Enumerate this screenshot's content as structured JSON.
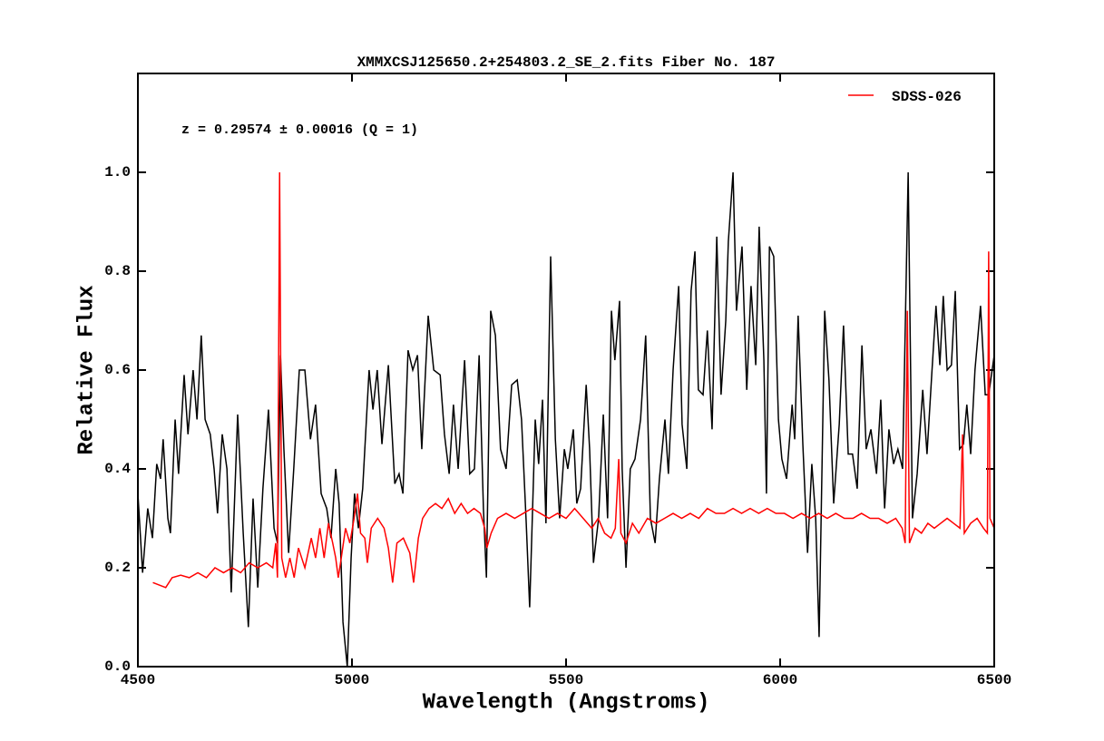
{
  "chart_data": {
    "type": "line",
    "title": "XMMXCSJ125650.2+254803.2_SE_2.fits Fiber No. 187",
    "xlabel": "Wavelength (Angstroms)",
    "ylabel": "Relative Flux",
    "annotation": "z = 0.29574 ± 0.00016 (Q = 1)",
    "annotation_color": "#ff0000",
    "legend": "upper right",
    "xlim": [
      4500,
      6500
    ],
    "ylim": [
      0,
      1.2
    ],
    "xticks": [
      4500,
      5000,
      5500,
      6000,
      6500
    ],
    "yticks": [
      {
        "value": 0,
        "label": "0.0"
      },
      0.2,
      0.4,
      0.6,
      0.8,
      {
        "value": 1,
        "label": "1.0"
      }
    ],
    "series": [
      {
        "color": "#000000",
        "x": [
          4500,
          4511,
          4523,
          4534,
          4544,
          4553,
          4559,
          4570,
          4576,
          4587,
          4595,
          4608,
          4617,
          4629,
          4638,
          4648,
          4657,
          4669,
          4678,
          4686,
          4697,
          4708,
          4718,
          4733,
          4746,
          4758,
          4769,
          4780,
          4792,
          4805,
          4818,
          4826,
          4833,
          4841,
          4852,
          4864,
          4877,
          4890,
          4903,
          4915,
          4928,
          4941,
          4951,
          4962,
          4970,
          4979,
          4989,
          4998,
          5006,
          5015,
          5025,
          5040,
          5049,
          5059,
          5070,
          5085,
          5100,
          5110,
          5119,
          5131,
          5142,
          5153,
          5163,
          5178,
          5191,
          5206,
          5216,
          5227,
          5237,
          5248,
          5263,
          5275,
          5286,
          5297,
          5307,
          5314,
          5324,
          5335,
          5347,
          5360,
          5373,
          5386,
          5396,
          5407,
          5415,
          5428,
          5436,
          5445,
          5453,
          5464,
          5475,
          5485,
          5496,
          5504,
          5517,
          5525,
          5534,
          5547,
          5555,
          5564,
          5576,
          5587,
          5597,
          5606,
          5614,
          5625,
          5631,
          5640,
          5650,
          5661,
          5674,
          5686,
          5697,
          5708,
          5718,
          5731,
          5739,
          5750,
          5763,
          5771,
          5782,
          5792,
          5801,
          5809,
          5820,
          5830,
          5841,
          5852,
          5862,
          5873,
          5879,
          5890,
          5898,
          5911,
          5922,
          5932,
          5943,
          5951,
          5962,
          5968,
          5975,
          5985,
          5996,
          6004,
          6015,
          6028,
          6034,
          6042,
          6053,
          6064,
          6074,
          6083,
          6091,
          6104,
          6114,
          6125,
          6138,
          6148,
          6159,
          6169,
          6180,
          6191,
          6201,
          6212,
          6225,
          6235,
          6244,
          6254,
          6265,
          6275,
          6286,
          6299,
          6309,
          6320,
          6333,
          6343,
          6354,
          6364,
          6373,
          6381,
          6390,
          6400,
          6409,
          6419,
          6428,
          6436,
          6445,
          6455,
          6468,
          6479,
          6487,
          6500
        ],
        "values": [
          0.35,
          0.19,
          0.32,
          0.26,
          0.41,
          0.38,
          0.46,
          0.3,
          0.27,
          0.5,
          0.39,
          0.59,
          0.47,
          0.6,
          0.5,
          0.67,
          0.5,
          0.47,
          0.4,
          0.31,
          0.47,
          0.4,
          0.15,
          0.51,
          0.27,
          0.08,
          0.34,
          0.16,
          0.36,
          0.52,
          0.28,
          0.25,
          0.63,
          0.44,
          0.23,
          0.4,
          0.6,
          0.6,
          0.46,
          0.53,
          0.35,
          0.32,
          0.26,
          0.4,
          0.33,
          0.09,
          0.0,
          0.22,
          0.35,
          0.28,
          0.36,
          0.6,
          0.52,
          0.6,
          0.45,
          0.61,
          0.37,
          0.39,
          0.35,
          0.64,
          0.6,
          0.63,
          0.44,
          0.71,
          0.6,
          0.59,
          0.47,
          0.39,
          0.53,
          0.4,
          0.62,
          0.39,
          0.4,
          0.63,
          0.32,
          0.18,
          0.72,
          0.67,
          0.44,
          0.4,
          0.57,
          0.58,
          0.5,
          0.29,
          0.12,
          0.5,
          0.41,
          0.54,
          0.29,
          0.83,
          0.46,
          0.3,
          0.44,
          0.4,
          0.48,
          0.33,
          0.36,
          0.57,
          0.44,
          0.21,
          0.3,
          0.51,
          0.3,
          0.72,
          0.62,
          0.74,
          0.4,
          0.2,
          0.4,
          0.42,
          0.5,
          0.67,
          0.3,
          0.25,
          0.38,
          0.5,
          0.39,
          0.6,
          0.77,
          0.49,
          0.4,
          0.76,
          0.84,
          0.56,
          0.55,
          0.68,
          0.48,
          0.87,
          0.55,
          0.7,
          0.86,
          1.0,
          0.72,
          0.85,
          0.56,
          0.77,
          0.61,
          0.89,
          0.62,
          0.35,
          0.85,
          0.83,
          0.5,
          0.42,
          0.38,
          0.53,
          0.46,
          0.71,
          0.45,
          0.23,
          0.41,
          0.3,
          0.06,
          0.72,
          0.58,
          0.33,
          0.49,
          0.69,
          0.43,
          0.43,
          0.36,
          0.65,
          0.44,
          0.48,
          0.39,
          0.54,
          0.32,
          0.48,
          0.41,
          0.44,
          0.4,
          1.0,
          0.3,
          0.39,
          0.56,
          0.43,
          0.59,
          0.73,
          0.61,
          0.75,
          0.6,
          0.61,
          0.76,
          0.44,
          0.45,
          0.53,
          0.43,
          0.6,
          0.73,
          0.55,
          0.55,
          0.63
        ]
      },
      {
        "name": "SDSS-026",
        "color": "#ff0000",
        "x": [
          4535,
          4550,
          4565,
          4580,
          4600,
          4620,
          4640,
          4660,
          4680,
          4700,
          4720,
          4740,
          4760,
          4780,
          4800,
          4815,
          4822,
          4826,
          4831,
          4836,
          4845,
          4855,
          4865,
          4875,
          4890,
          4905,
          4915,
          4925,
          4935,
          4945,
          4955,
          4962,
          4968,
          4975,
          4985,
          4995,
          5005,
          5013,
          5020,
          5030,
          5036,
          5045,
          5060,
          5075,
          5085,
          5095,
          5105,
          5120,
          5135,
          5144,
          5155,
          5165,
          5180,
          5195,
          5210,
          5225,
          5240,
          5255,
          5270,
          5285,
          5300,
          5310,
          5315,
          5325,
          5340,
          5360,
          5380,
          5400,
          5420,
          5440,
          5460,
          5480,
          5500,
          5520,
          5540,
          5560,
          5575,
          5590,
          5605,
          5615,
          5623,
          5628,
          5640,
          5655,
          5670,
          5690,
          5710,
          5730,
          5750,
          5770,
          5790,
          5810,
          5830,
          5850,
          5870,
          5890,
          5910,
          5930,
          5950,
          5970,
          5990,
          6010,
          6030,
          6050,
          6070,
          6090,
          6110,
          6130,
          6150,
          6170,
          6190,
          6210,
          6230,
          6250,
          6270,
          6285,
          6292,
          6297,
          6302,
          6315,
          6330,
          6345,
          6360,
          6375,
          6390,
          6405,
          6420,
          6426,
          6430,
          6445,
          6460,
          6475,
          6484,
          6487,
          6490,
          6500
        ],
        "values": [
          0.17,
          0.165,
          0.16,
          0.18,
          0.185,
          0.18,
          0.19,
          0.18,
          0.2,
          0.19,
          0.2,
          0.19,
          0.21,
          0.2,
          0.21,
          0.2,
          0.25,
          0.18,
          1.0,
          0.22,
          0.18,
          0.22,
          0.18,
          0.24,
          0.2,
          0.26,
          0.22,
          0.28,
          0.22,
          0.29,
          0.25,
          0.22,
          0.18,
          0.22,
          0.28,
          0.25,
          0.3,
          0.35,
          0.27,
          0.26,
          0.21,
          0.28,
          0.3,
          0.28,
          0.24,
          0.17,
          0.25,
          0.26,
          0.23,
          0.17,
          0.26,
          0.3,
          0.32,
          0.33,
          0.32,
          0.34,
          0.31,
          0.33,
          0.31,
          0.32,
          0.31,
          0.28,
          0.24,
          0.27,
          0.3,
          0.31,
          0.3,
          0.31,
          0.32,
          0.31,
          0.3,
          0.31,
          0.3,
          0.32,
          0.3,
          0.28,
          0.3,
          0.27,
          0.26,
          0.28,
          0.42,
          0.27,
          0.25,
          0.29,
          0.27,
          0.3,
          0.29,
          0.3,
          0.31,
          0.3,
          0.31,
          0.3,
          0.32,
          0.31,
          0.31,
          0.32,
          0.31,
          0.32,
          0.31,
          0.32,
          0.31,
          0.31,
          0.3,
          0.31,
          0.3,
          0.31,
          0.3,
          0.31,
          0.3,
          0.3,
          0.31,
          0.3,
          0.3,
          0.29,
          0.3,
          0.28,
          0.25,
          0.72,
          0.25,
          0.28,
          0.27,
          0.29,
          0.28,
          0.29,
          0.3,
          0.29,
          0.28,
          0.47,
          0.27,
          0.29,
          0.3,
          0.28,
          0.27,
          0.84,
          0.3,
          0.28
        ]
      }
    ]
  }
}
